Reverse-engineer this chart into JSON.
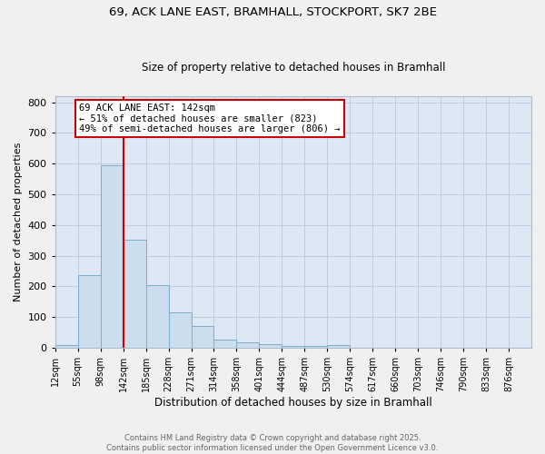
{
  "title1": "69, ACK LANE EAST, BRAMHALL, STOCKPORT, SK7 2BE",
  "title2": "Size of property relative to detached houses in Bramhall",
  "xlabel": "Distribution of detached houses by size in Bramhall",
  "ylabel": "Number of detached properties",
  "bin_labels": [
    "12sqm",
    "55sqm",
    "98sqm",
    "142sqm",
    "185sqm",
    "228sqm",
    "271sqm",
    "314sqm",
    "358sqm",
    "401sqm",
    "444sqm",
    "487sqm",
    "530sqm",
    "574sqm",
    "617sqm",
    "660sqm",
    "703sqm",
    "746sqm",
    "790sqm",
    "833sqm",
    "876sqm"
  ],
  "bin_values": [
    8,
    238,
    595,
    352,
    205,
    115,
    72,
    28,
    17,
    12,
    6,
    7,
    10,
    0,
    0,
    0,
    0,
    0,
    0,
    0,
    0
  ],
  "bar_color": "#ccdded",
  "bar_edge_color": "#7aadcc",
  "vline_x_index": 3,
  "vline_color": "#cc0000",
  "annotation_text": "69 ACK LANE EAST: 142sqm\n← 51% of detached houses are smaller (823)\n49% of semi-detached houses are larger (806) →",
  "annotation_box_color": "#ffffff",
  "annotation_box_edge": "#cc0000",
  "grid_color": "#c0cce0",
  "background_color": "#dde8f4",
  "fig_background": "#f0f0f0",
  "footer_text": "Contains HM Land Registry data © Crown copyright and database right 2025.\nContains public sector information licensed under the Open Government Licence v3.0.",
  "ylim": [
    0,
    820
  ],
  "yticks": [
    0,
    100,
    200,
    300,
    400,
    500,
    600,
    700,
    800
  ]
}
